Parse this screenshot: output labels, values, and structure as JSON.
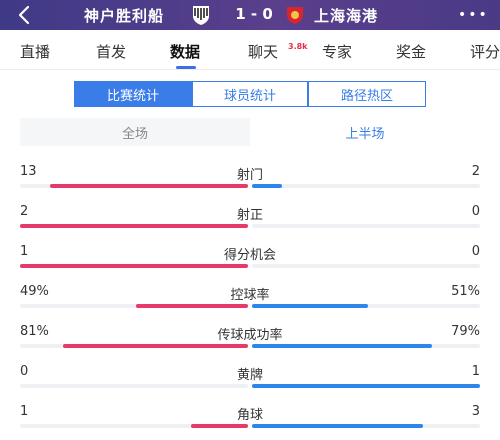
{
  "header": {
    "home_team": "神户胜利船",
    "score": "1 - 0",
    "away_team": "上海海港",
    "more": "•••"
  },
  "tabs": [
    {
      "label": "直播"
    },
    {
      "label": "首发"
    },
    {
      "label": "数据"
    },
    {
      "label": "聊天"
    },
    {
      "label": "专家"
    },
    {
      "label": "奖金"
    },
    {
      "label": "评分"
    }
  ],
  "chat_badge": "3.8k",
  "stat_views": [
    "比赛统计",
    "球员统计",
    "路径热区"
  ],
  "period": {
    "full": "全场",
    "first_half": "上半场"
  },
  "colors": {
    "home": "#e53a6a",
    "away": "#2f86ea",
    "accent": "#3a7de8"
  },
  "stats": [
    {
      "label": "射门",
      "home": "13",
      "away": "2",
      "home_share": 0.867,
      "away_share": 0.133
    },
    {
      "label": "射正",
      "home": "2",
      "away": "0",
      "home_share": 1.0,
      "away_share": 0.0
    },
    {
      "label": "得分机会",
      "home": "1",
      "away": "0",
      "home_share": 1.0,
      "away_share": 0.0
    },
    {
      "label": "控球率",
      "home": "49%",
      "away": "51%",
      "home_share": 0.49,
      "away_share": 0.51
    },
    {
      "label": "传球成功率",
      "home": "81%",
      "away": "79%",
      "home_share": 0.81,
      "away_share": 0.79
    },
    {
      "label": "黄牌",
      "home": "0",
      "away": "1",
      "home_share": 0.0,
      "away_share": 1.0
    },
    {
      "label": "角球",
      "home": "1",
      "away": "3",
      "home_share": 0.25,
      "away_share": 0.75
    }
  ]
}
